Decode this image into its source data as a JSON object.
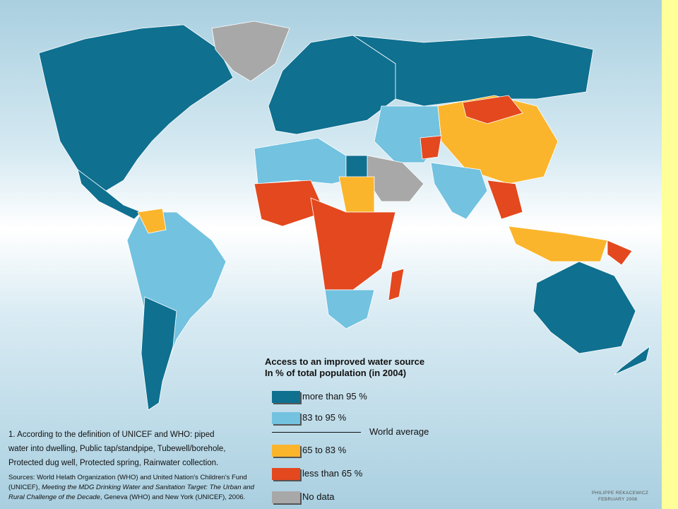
{
  "legend": {
    "title": "Access to an improved water source",
    "subtitle": "In % of total population (in 2004)",
    "items": [
      {
        "label": "more than 95 %",
        "color": "#0f7090"
      },
      {
        "label": "83 to 95 %",
        "color": "#72c2e0"
      },
      {
        "label": "65 to 83 %",
        "color": "#fbb52c"
      },
      {
        "label": "less than 65 %",
        "color": "#e3481e"
      },
      {
        "label": "No data",
        "color": "#a8a8a8"
      }
    ],
    "world_average": "World average"
  },
  "footnote": [
    "1. According to the definition of UNICEF and WHO: piped",
    "water into dwelling, Public tap/standpipe, Tubewell/borehole,",
    "Protected dug well, Protected spring, Rainwater collection."
  ],
  "sources": [
    [
      {
        "text": "Sources: World Helath Organization (WHO) and United Nation's Children's Fund",
        "italic": false
      }
    ],
    [
      {
        "text": "(UNICEF), ",
        "italic": false
      },
      {
        "text": "Meeting the MDG Drinking Water and Sanitation Target: The Urban and",
        "italic": true
      }
    ],
    [
      {
        "text": "Rural Challenge of the Decade",
        "italic": true
      },
      {
        "text": ", Geneva (WHO) and New York (UNICEF), 2006.",
        "italic": false
      }
    ]
  ],
  "credit": [
    "PHILIPPE REKACEWICZ",
    "FEBRUARY 2008"
  ]
}
